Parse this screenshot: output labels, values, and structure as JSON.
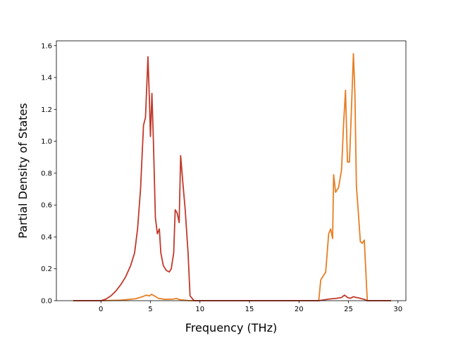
{
  "chart_data": {
    "type": "line",
    "title": "",
    "xlabel": "Frequency (THz)",
    "ylabel": "Partial Density of States",
    "xlim": [
      -4.5,
      30.8
    ],
    "ylim": [
      0.0,
      1.63
    ],
    "xticks": [
      0,
      5,
      10,
      15,
      20,
      25,
      30
    ],
    "xtick_labels": [
      "0",
      "5",
      "10",
      "15",
      "20",
      "25",
      "30"
    ],
    "yticks": [
      0.0,
      0.2,
      0.4,
      0.6,
      0.8,
      1.0,
      1.2,
      1.4,
      1.6
    ],
    "ytick_labels": [
      "0.0",
      "0.2",
      "0.4",
      "0.6",
      "0.8",
      "1.0",
      "1.2",
      "1.4",
      "1.6"
    ],
    "grid": false,
    "legend": "none",
    "series": [
      {
        "color": "#e67e22",
        "points": [
          [
            -2.8,
            0.0
          ],
          [
            0.0,
            0.0
          ],
          [
            2.0,
            0.003
          ],
          [
            3.5,
            0.012
          ],
          [
            4.2,
            0.025
          ],
          [
            4.6,
            0.035
          ],
          [
            4.9,
            0.03
          ],
          [
            5.1,
            0.04
          ],
          [
            5.4,
            0.03
          ],
          [
            5.8,
            0.015
          ],
          [
            6.5,
            0.008
          ],
          [
            7.3,
            0.01
          ],
          [
            7.6,
            0.014
          ],
          [
            8.0,
            0.006
          ],
          [
            8.6,
            0.002
          ],
          [
            9.0,
            0.0
          ],
          [
            22.0,
            0.0
          ],
          [
            22.2,
            0.13
          ],
          [
            22.7,
            0.18
          ],
          [
            23.0,
            0.42
          ],
          [
            23.2,
            0.45
          ],
          [
            23.4,
            0.39
          ],
          [
            23.5,
            0.79
          ],
          [
            23.7,
            0.68
          ],
          [
            24.0,
            0.71
          ],
          [
            24.3,
            0.82
          ],
          [
            24.5,
            1.1
          ],
          [
            24.7,
            1.32
          ],
          [
            24.9,
            0.87
          ],
          [
            25.1,
            0.87
          ],
          [
            25.3,
            1.2
          ],
          [
            25.5,
            1.55
          ],
          [
            25.65,
            1.3
          ],
          [
            25.8,
            0.72
          ],
          [
            26.0,
            0.55
          ],
          [
            26.2,
            0.37
          ],
          [
            26.4,
            0.36
          ],
          [
            26.6,
            0.38
          ],
          [
            26.9,
            0.0
          ],
          [
            29.3,
            0.0
          ]
        ]
      },
      {
        "color": "#c0392b",
        "points": [
          [
            -2.8,
            0.0
          ],
          [
            0.0,
            0.0
          ],
          [
            0.5,
            0.01
          ],
          [
            1.0,
            0.03
          ],
          [
            1.5,
            0.06
          ],
          [
            2.0,
            0.1
          ],
          [
            2.5,
            0.15
          ],
          [
            3.0,
            0.22
          ],
          [
            3.4,
            0.3
          ],
          [
            3.7,
            0.45
          ],
          [
            4.0,
            0.7
          ],
          [
            4.3,
            1.1
          ],
          [
            4.5,
            1.15
          ],
          [
            4.75,
            1.53
          ],
          [
            4.9,
            1.25
          ],
          [
            5.0,
            1.03
          ],
          [
            5.15,
            1.3
          ],
          [
            5.3,
            1.0
          ],
          [
            5.5,
            0.52
          ],
          [
            5.7,
            0.42
          ],
          [
            5.9,
            0.45
          ],
          [
            6.05,
            0.3
          ],
          [
            6.3,
            0.22
          ],
          [
            6.6,
            0.19
          ],
          [
            6.9,
            0.18
          ],
          [
            7.1,
            0.2
          ],
          [
            7.35,
            0.3
          ],
          [
            7.5,
            0.57
          ],
          [
            7.7,
            0.55
          ],
          [
            7.9,
            0.49
          ],
          [
            8.05,
            0.91
          ],
          [
            8.3,
            0.72
          ],
          [
            8.5,
            0.58
          ],
          [
            8.8,
            0.3
          ],
          [
            9.0,
            0.03
          ],
          [
            9.4,
            0.0
          ],
          [
            22.0,
            0.0
          ],
          [
            23.0,
            0.01
          ],
          [
            23.8,
            0.015
          ],
          [
            24.3,
            0.02
          ],
          [
            24.6,
            0.035
          ],
          [
            24.9,
            0.02
          ],
          [
            25.2,
            0.015
          ],
          [
            25.5,
            0.025
          ],
          [
            25.8,
            0.02
          ],
          [
            26.2,
            0.015
          ],
          [
            26.6,
            0.008
          ],
          [
            26.9,
            0.0
          ],
          [
            29.3,
            0.0
          ]
        ]
      }
    ]
  }
}
